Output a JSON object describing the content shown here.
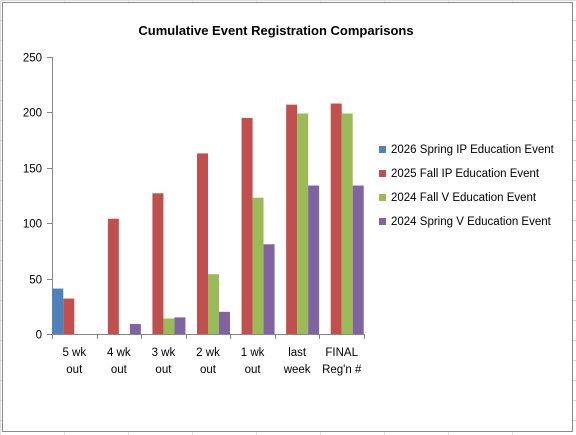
{
  "chart_data": {
    "type": "bar",
    "title": "Cumulative Event Registration Comparisons",
    "xlabel": "",
    "ylabel": "",
    "categories": [
      [
        "5 wk",
        "out"
      ],
      [
        "4 wk",
        "out"
      ],
      [
        "3 wk",
        "out"
      ],
      [
        "2 wk",
        "out"
      ],
      [
        "1 wk",
        "out"
      ],
      [
        "last",
        "week"
      ],
      [
        "FINAL",
        "Reg'n #"
      ]
    ],
    "ylim": [
      0,
      250
    ],
    "yticks": [
      0,
      50,
      100,
      150,
      200,
      250
    ],
    "grid": false,
    "legend_position": "right",
    "series": [
      {
        "name": "2026 Spring IP Education Event",
        "color": "#4f81bd",
        "values": [
          41,
          null,
          null,
          null,
          null,
          null,
          null
        ]
      },
      {
        "name": "2025 Fall IP Education Event",
        "color": "#c0504d",
        "values": [
          32,
          104,
          127,
          163,
          195,
          207,
          208
        ]
      },
      {
        "name": "2024 Fall V Education Event",
        "color": "#9bbb59",
        "values": [
          null,
          null,
          14,
          54,
          123,
          199,
          199
        ]
      },
      {
        "name": "2024 Spring V Education Event",
        "color": "#8064a2",
        "values": [
          null,
          9,
          15,
          20,
          81,
          134,
          134
        ]
      }
    ]
  }
}
